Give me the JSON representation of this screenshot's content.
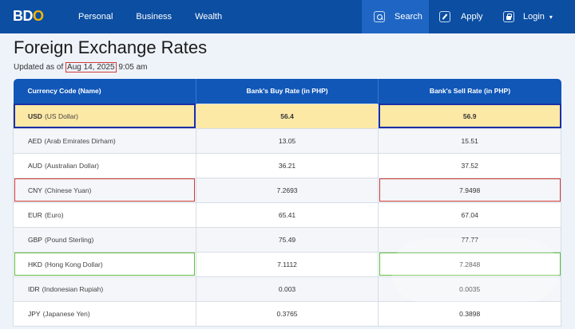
{
  "header": {
    "logo_main": "BD",
    "logo_o": "O",
    "nav": [
      "Personal",
      "Business",
      "Wealth"
    ],
    "search_label": "Search",
    "apply_label": "Apply",
    "login_label": "Login"
  },
  "page": {
    "title": "Foreign Exchange Rates",
    "updated_prefix": "Updated as of",
    "updated_date": "Aug 14, 2025",
    "updated_time": "9:05 am"
  },
  "table": {
    "headers": [
      "Currency Code (Name)",
      "Bank's Buy Rate (in PHP)",
      "Bank's Sell Rate (in PHP)"
    ],
    "rows": [
      {
        "code": "USD",
        "name": "(US Dollar)",
        "buy": "56.4",
        "sell": "56.9"
      },
      {
        "code": "AED",
        "name": "(Arab Emirates Dirham)",
        "buy": "13.05",
        "sell": "15.51"
      },
      {
        "code": "AUD",
        "name": "(Australian Dollar)",
        "buy": "36.21",
        "sell": "37.52"
      },
      {
        "code": "CNY",
        "name": "(Chinese Yuan)",
        "buy": "7.2693",
        "sell": "7.9498"
      },
      {
        "code": "EUR",
        "name": "(Euro)",
        "buy": "65.41",
        "sell": "67.04"
      },
      {
        "code": "GBP",
        "name": "(Pound Sterling)",
        "buy": "75.49",
        "sell": "77.77"
      },
      {
        "code": "HKD",
        "name": "(Hong Kong Dollar)",
        "buy": "7.1112",
        "sell": "7.2848"
      },
      {
        "code": "IDR",
        "name": "(Indonesian Rupiah)",
        "buy": "0.003",
        "sell": "0.0035"
      },
      {
        "code": "JPY",
        "name": "(Japanese Yen)",
        "buy": "0.3765",
        "sell": "0.3898"
      }
    ]
  },
  "colors": {
    "header_blue": "#0b4ea2",
    "table_header": "#1057b8",
    "usd_highlight": "#fde9a6",
    "outline_blue": "#1a2fa6",
    "outline_red": "#d23a3a",
    "outline_green": "#5fbf3c"
  }
}
